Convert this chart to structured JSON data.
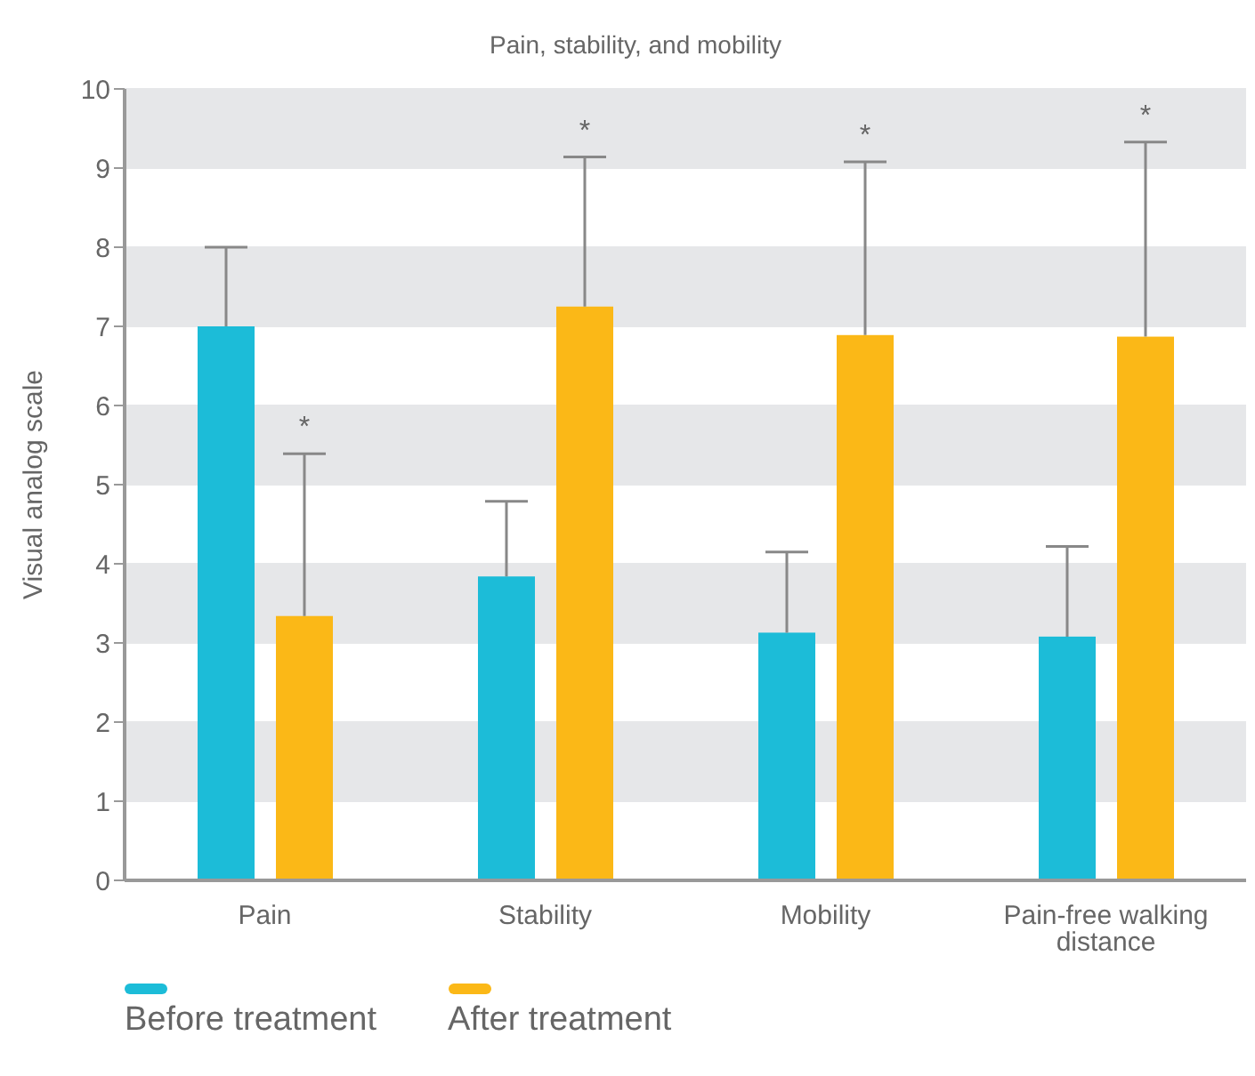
{
  "chart_data": {
    "type": "bar",
    "title": "Pain, stability, and mobility",
    "ylabel": "Visual analog scale",
    "categories": [
      "Pain",
      "Stability",
      "Mobility",
      "Pain-free walking distance"
    ],
    "series": [
      {
        "name": "Before treatment",
        "color": "#1cbcd8",
        "values": [
          7.0,
          3.84,
          3.13,
          3.08
        ],
        "errors": [
          [
            7.0,
            8.0
          ],
          [
            3.84,
            4.79
          ],
          [
            3.13,
            4.15
          ],
          [
            3.08,
            4.22
          ]
        ]
      },
      {
        "name": "After treatment",
        "color": "#fbb817",
        "values": [
          3.34,
          7.25,
          6.89,
          6.87
        ],
        "errors": [
          [
            3.34,
            5.39
          ],
          [
            7.25,
            9.14
          ],
          [
            6.89,
            9.08
          ],
          [
            6.87,
            9.33
          ]
        ]
      }
    ],
    "annotations": [
      "*",
      "*",
      "*",
      "*"
    ],
    "ylim": [
      0,
      10
    ],
    "yticks": [
      0,
      1,
      2,
      3,
      4,
      5,
      6,
      7,
      8,
      9,
      10
    ],
    "grid": "y",
    "legend": "bottom left"
  }
}
